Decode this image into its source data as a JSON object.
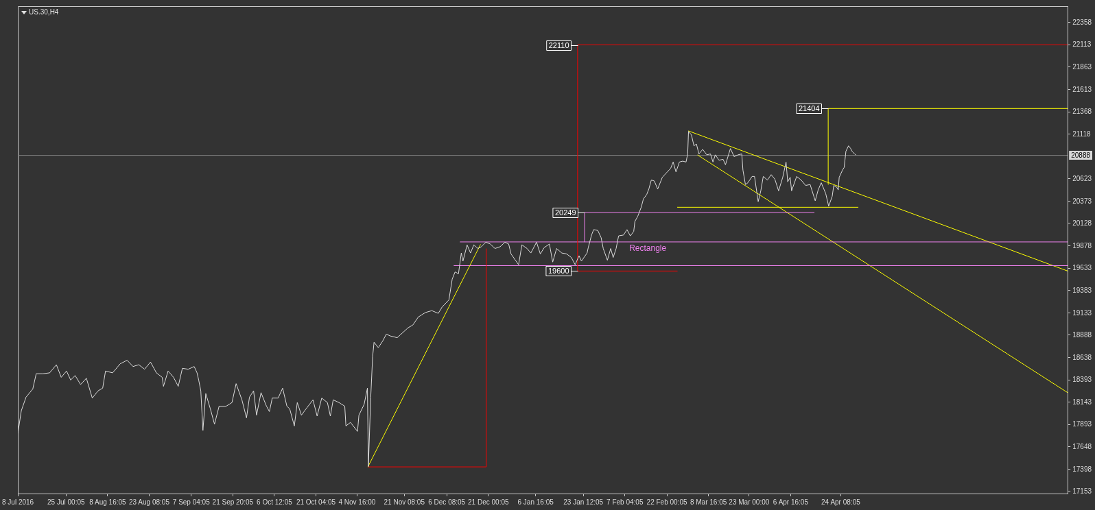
{
  "chart_data": {
    "type": "line",
    "title": "US.30,H4",
    "marker": "none",
    "grid": false,
    "xlim": [
      "2016-07-08",
      "2017-07-13T10:00"
    ],
    "xticks": [
      {
        "value": "2016-07-08",
        "label": "8 Jul 2016"
      },
      {
        "value": "2016-07-25T00:05",
        "label": "25 Jul 00:05"
      },
      {
        "value": "2016-08-08T16:05",
        "label": "8 Aug 16:05"
      },
      {
        "value": "2016-08-23T08:05",
        "label": "23 Aug 08:05"
      },
      {
        "value": "2016-09-07T04:05",
        "label": "7 Sep 04:05"
      },
      {
        "value": "2016-09-21T20:05",
        "label": "21 Sep 20:05"
      },
      {
        "value": "2016-10-06T12:05",
        "label": "6 Oct 12:05"
      },
      {
        "value": "2016-10-21T04:05",
        "label": "21 Oct 04:05"
      },
      {
        "value": "2016-11-04T16:00",
        "label": "4 Nov 16:00"
      },
      {
        "value": "2016-11-21T08:05",
        "label": "21 Nov 08:05"
      },
      {
        "value": "2016-12-06T08:05",
        "label": "6 Dec 08:05"
      },
      {
        "value": "2016-12-21T00:05",
        "label": "21 Dec 00:05"
      },
      {
        "value": "2017-01-06T16:05",
        "label": "6 Jan 16:05"
      },
      {
        "value": "2017-01-23T12:05",
        "label": "23 Jan 12:05"
      },
      {
        "value": "2017-02-07T04:05",
        "label": "7 Feb 04:05"
      },
      {
        "value": "2017-02-22T00:05",
        "label": "22 Feb 00:05"
      },
      {
        "value": "2017-03-08T16:05",
        "label": "8 Mar 16:05"
      },
      {
        "value": "2017-03-23T00:00",
        "label": "23 Mar 00:00"
      },
      {
        "value": "2017-04-06T16:05",
        "label": "6 Apr 16:05"
      },
      {
        "value": "2017-04-24T08:05",
        "label": "24 Apr 08:05"
      }
    ],
    "ylim": [
      17130,
      22540
    ],
    "yticks": [
      22358,
      22113,
      21863,
      21613,
      21368,
      21118,
      20623,
      20373,
      20128,
      19878,
      19633,
      19383,
      19133,
      18888,
      18638,
      18393,
      18143,
      17893,
      17648,
      17398,
      17153
    ],
    "series": [
      {
        "color": "#dcdcdc",
        "x": [
          "2016-07-08T00:00",
          "2016-07-09T05:00",
          "2016-07-10T21:00",
          "2016-07-13T06:00",
          "2016-07-14T11:00",
          "2016-07-16T20:00",
          "2016-07-19T05:00",
          "2016-07-21T14:00",
          "2016-07-23T07:00",
          "2016-07-25T04:00",
          "2016-07-26T15:00",
          "2016-07-28T05:00",
          "2016-07-30T03:00",
          "2016-08-01T04:00",
          "2016-08-03T06:00",
          "2016-08-05T07:00",
          "2016-08-06T22:00",
          "2016-08-07T22:00",
          "2016-08-10T10:00",
          "2016-08-13T02:00",
          "2016-08-15T13:00",
          "2016-08-17T15:00",
          "2016-08-19T16:00",
          "2016-08-21T17:00",
          "2016-08-23T19:00",
          "2016-08-25T21:00",
          "2016-08-27T22:00",
          "2016-08-28T09:00",
          "2016-08-30T00:00",
          "2016-08-31T22:00",
          "2016-09-02T14:00",
          "2016-09-04T01:00",
          "2016-09-06T03:00",
          "2016-09-08T05:00",
          "2016-09-09T05:00",
          "2016-09-09T19:00",
          "2016-09-10T13:00",
          "2016-09-11T07:00",
          "2016-09-12T07:00",
          "2016-09-13T22:00",
          "2016-09-15T09:00",
          "2016-09-17T00:00",
          "2016-09-19T12:00",
          "2016-09-21T13:00",
          "2016-09-23T00:00",
          "2016-09-25T01:00",
          "2016-09-26T16:00",
          "2016-09-27T17:00",
          "2016-09-29T04:00",
          "2016-09-30T05:00",
          "2016-10-01T19:00",
          "2016-10-03T17:00",
          "2016-10-04T18:00",
          "2016-10-05T18:00",
          "2016-10-07T20:00",
          "2016-10-09T10:00",
          "2016-10-10T22:00",
          "2016-10-11T22:00",
          "2016-10-13T13:00",
          "2016-10-14T14:00",
          "2016-10-16T01:00",
          "2016-10-17T16:00",
          "2016-10-20T03:00",
          "2016-10-21T14:00",
          "2016-10-23T05:00",
          "2016-10-25T05:00",
          "2016-10-26T06:00",
          "2016-10-27T06:00",
          "2016-10-29T07:00",
          "2016-10-31T08:00",
          "2016-10-31T18:00",
          "2016-11-02T08:00",
          "2016-11-04T20:00",
          "2016-11-05T08:00",
          "2016-11-07T04:00",
          "2016-11-08T08:00",
          "2016-11-08T16:00",
          "2016-11-09T12:00",
          "2016-11-10T04:00",
          "2016-11-10T16:00",
          "2016-11-12T04:00",
          "2016-11-13T16:00",
          "2016-11-15T00:00",
          "2016-11-16T08:00",
          "2016-11-18T20:00",
          "2016-11-22T16:00",
          "2016-11-24T08:00",
          "2016-11-26T07:00",
          "2016-11-28T20:00",
          "2016-12-01T02:00",
          "2016-12-03T08:00",
          "2016-12-04T16:00",
          "2016-12-07T02:00",
          "2016-12-08T06:00",
          "2016-12-09T06:00",
          "2016-12-10T11:00",
          "2016-12-11T11:00",
          "2016-12-12T01:00",
          "2016-12-13T12:00",
          "2016-12-14T17:00",
          "2016-12-15T21:00",
          "2016-12-17T08:00",
          "2016-12-18T12:00",
          "2016-12-20T03:00",
          "2016-12-21T16:00",
          "2016-12-23T08:00",
          "2016-12-25T04:00",
          "2016-12-26T20:00",
          "2016-12-28T04:00",
          "2016-12-29T00:00",
          "2016-12-31T16:00",
          "2017-01-01T20:00",
          "2017-01-03T16:00",
          "2017-01-05T00:00",
          "2017-01-07T00:00",
          "2017-01-08T08:00",
          "2017-01-09T17:00",
          "2017-01-11T13:00",
          "2017-01-12T17:00",
          "2017-01-14T02:00",
          "2017-01-15T22:00",
          "2017-01-17T15:00",
          "2017-01-19T07:00",
          "2017-01-20T15:00",
          "2017-01-22T00:00",
          "2017-01-22T20:00",
          "2017-01-24T20:00",
          "2017-01-25T06:00",
          "2017-01-26T10:00",
          "2017-01-27T04:00",
          "2017-01-28T15:00",
          "2017-01-29T19:00",
          "2017-01-30T13:00",
          "2017-02-01T00:00",
          "2017-02-02T04:00",
          "2017-02-03T01:00",
          "2017-02-04T02:00",
          "2017-02-04T23:00",
          "2017-02-06T17:00",
          "2017-02-07T22:00",
          "2017-02-09T02:00",
          "2017-02-10T07:00",
          "2017-02-10T17:00",
          "2017-02-11T18:00",
          "2017-02-12T23:00",
          "2017-02-13T17:00",
          "2017-02-14T21:00",
          "2017-02-15T15:00",
          "2017-02-16T12:00",
          "2017-02-17T13:00",
          "2017-02-18T18:00",
          "2017-02-20T09:00",
          "2017-02-21T20:00",
          "2017-02-23T08:00",
          "2017-02-24T05:00",
          "2017-02-25T05:00",
          "2017-02-26T10:00",
          "2017-02-27T14:00",
          "2017-02-28T18:00",
          "2017-03-01T08:00",
          "2017-03-01T15:00",
          "2017-03-02T16:00",
          "2017-03-03T13:00",
          "2017-03-04T10:00",
          "2017-03-05T07:00",
          "2017-03-06T15:00",
          "2017-03-08T02:00",
          "2017-03-09T09:00",
          "2017-03-10T06:00",
          "2017-03-11T02:00",
          "2017-03-12T09:00",
          "2017-03-13T20:00",
          "2017-03-14T16:00",
          "2017-03-16T10:00",
          "2017-03-17T17:00",
          "2017-03-19T03:00",
          "2017-03-20T10:00",
          "2017-03-20T20:00",
          "2017-03-21T17:00",
          "2017-03-22T14:00",
          "2017-03-24T01:00",
          "2017-03-24T22:00",
          "2017-03-25T19:00",
          "2017-03-26T05:00",
          "2017-03-27T03:00",
          "2017-03-28T00:00",
          "2017-03-29T11:00",
          "2017-03-30T19:00",
          "2017-04-01T02:00",
          "2017-04-02T10:00",
          "2017-04-03T21:00",
          "2017-04-05T01:00",
          "2017-04-05T15:00",
          "2017-04-06T12:00",
          "2017-04-07T00:00",
          "2017-04-08T19:00",
          "2017-04-10T09:00",
          "2017-04-11T23:00",
          "2017-04-13T13:00",
          "2017-04-15T08:00",
          "2017-04-16T09:00",
          "2017-04-17T11:00",
          "2017-04-19T01:00",
          "2017-04-20T02:00",
          "2017-04-21T08:00",
          "2017-04-21T21:00",
          "2017-04-22T22:00",
          "2017-04-23T11:00",
          "2017-04-23T19:00",
          "2017-04-24T23:00",
          "2017-04-25T13:00",
          "2017-04-26T04:00",
          "2017-04-27T02:00",
          "2017-04-27T20:00",
          "2017-04-28T07:00",
          "2017-04-29T05:00",
          "2017-04-29T16:00"
        ],
        "values": [
          17800,
          18050,
          18200,
          18290,
          18460,
          18460,
          18470,
          18560,
          18420,
          18490,
          18390,
          18440,
          18340,
          18410,
          18190,
          18270,
          18300,
          18490,
          18470,
          18570,
          18610,
          18540,
          18560,
          18510,
          18590,
          18470,
          18420,
          18320,
          18490,
          18420,
          18320,
          18520,
          18510,
          18540,
          18470,
          18390,
          18270,
          17830,
          18240,
          18070,
          17900,
          18100,
          18100,
          18140,
          18350,
          18170,
          17970,
          18200,
          18270,
          18000,
          18250,
          18100,
          18040,
          18190,
          18190,
          18300,
          18100,
          18070,
          17880,
          18140,
          18000,
          18070,
          18170,
          17990,
          18190,
          18140,
          17990,
          18170,
          18140,
          18100,
          17880,
          17920,
          17820,
          18000,
          18120,
          18300,
          17430,
          18200,
          18650,
          18810,
          18750,
          18820,
          18900,
          18880,
          18860,
          18970,
          19000,
          19090,
          19140,
          19160,
          19130,
          19200,
          19280,
          19510,
          19590,
          19570,
          19800,
          19710,
          19890,
          19800,
          19890,
          19850,
          19870,
          19920,
          19900,
          19850,
          19870,
          19920,
          19900,
          19790,
          19670,
          19890,
          19850,
          19800,
          19920,
          19790,
          19860,
          19900,
          19700,
          19850,
          19800,
          19790,
          19750,
          19670,
          19770,
          19710,
          19800,
          19860,
          20000,
          20060,
          20050,
          19970,
          19850,
          19720,
          19850,
          19750,
          19850,
          19990,
          20000,
          20060,
          19990,
          20040,
          20150,
          20210,
          20310,
          20400,
          20450,
          20510,
          20610,
          20600,
          20510,
          20640,
          20690,
          20740,
          20810,
          20700,
          20810,
          20820,
          20810,
          20900,
          21150,
          21110,
          20990,
          21010,
          20900,
          20950,
          20890,
          20900,
          20810,
          20890,
          20830,
          20840,
          20780,
          20960,
          20870,
          20890,
          20900,
          20720,
          20560,
          20580,
          20650,
          20650,
          20460,
          20370,
          20490,
          20650,
          20610,
          20670,
          20620,
          20490,
          20640,
          20810,
          20590,
          20640,
          20490,
          20650,
          20610,
          20550,
          20560,
          20380,
          20500,
          20580,
          20460,
          20320,
          20430,
          20550,
          20530,
          20500,
          20640,
          20720,
          20750,
          20930,
          20990,
          20960,
          20930,
          20900,
          20890
        ]
      },
      {
        "color": "#ffff00",
        "x": [
          "2016-11-08T12:00",
          "2016-12-18T05:00"
        ],
        "values": [
          17426,
          19893
        ]
      },
      {
        "color": "#ff0000",
        "x": [
          "2016-11-08T12:00",
          "2016-12-20T06:00",
          "2016-12-20T06:00"
        ],
        "values": [
          17426,
          17426,
          19848
        ]
      },
      {
        "color": "#ff0000",
        "x": [
          "2017-02-25T16:00",
          "2017-01-21T12:00",
          "2017-01-21T12:00",
          "2017-07-13T10:00"
        ],
        "values": [
          19600,
          19600,
          22110,
          22110
        ]
      },
      {
        "color": "#ee82ee",
        "x": [
          "2016-12-11T01:00",
          "2017-07-13T10:00"
        ],
        "values": [
          19923,
          19923
        ]
      },
      {
        "color": "#ee82ee",
        "x": [
          "2016-12-08T20:00",
          "2017-07-13T10:00"
        ],
        "values": [
          19660,
          19660
        ]
      },
      {
        "color": "#ee82ee",
        "x": [
          "2017-01-23T23:00",
          "2017-01-23T23:00",
          "2017-04-14T23:00"
        ],
        "values": [
          19923,
          20249,
          20249
        ]
      },
      {
        "color": "#ffff00",
        "x": [
          "2017-03-01T15:00",
          "2017-07-13T10:00"
        ],
        "values": [
          21155,
          19600
        ]
      },
      {
        "color": "#ffff00",
        "x": [
          "2017-03-04T20:00",
          "2017-07-13T10:00"
        ],
        "values": [
          20888,
          18250
        ]
      },
      {
        "color": "#ffff00",
        "x": [
          "2017-02-25T16:00",
          "2017-04-30T11:00"
        ],
        "values": [
          20308,
          20308
        ]
      },
      {
        "color": "#ffff00",
        "x": [
          "2017-04-19T22:00",
          "2017-04-19T22:00",
          "2017-07-13T10:00"
        ],
        "values": [
          20561,
          21404,
          21404
        ]
      }
    ],
    "ref_lines": [
      {
        "axis": "y",
        "value": 20888,
        "label": "20888",
        "color": "#808080"
      }
    ],
    "annotations": [
      {
        "text": "22110",
        "x": "2017-01-21T12:00",
        "y": 22110
      },
      {
        "text": "20249",
        "x": "2017-01-23T23:00",
        "y": 20249
      },
      {
        "text": "19600",
        "x": "2017-01-21T12:00",
        "y": 19600
      },
      {
        "text": "21404",
        "x": "2017-04-19T22:00",
        "y": 21404
      },
      "Rectangle"
    ]
  }
}
